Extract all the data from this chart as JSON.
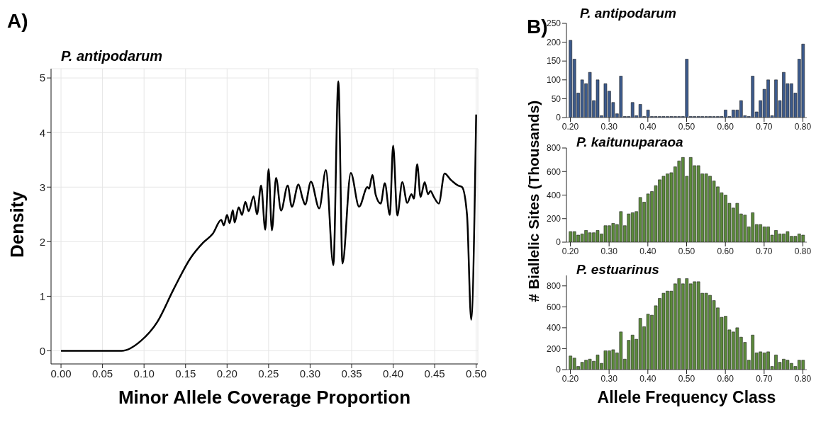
{
  "chart_data": [
    {
      "type": "line",
      "title": "P. antipodarum",
      "annotations": [
        "A)"
      ],
      "xlabel": "Minor Allele Coverage Proportion",
      "ylabel": "Density",
      "color": "#000000",
      "grid": true,
      "xlim": [
        -0.012,
        0.502
      ],
      "ylim": [
        -0.24,
        5.17
      ],
      "xticks": [
        {
          "value": 0,
          "label": "0.00"
        },
        {
          "value": 0.05,
          "label": "0.05"
        },
        {
          "value": 0.1,
          "label": "0.10"
        },
        {
          "value": 0.15,
          "label": "0.15"
        },
        {
          "value": 0.2,
          "label": "0.20"
        },
        {
          "value": 0.25,
          "label": "0.25"
        },
        {
          "value": 0.3,
          "label": "0.30"
        },
        {
          "value": 0.35,
          "label": "0.35"
        },
        {
          "value": 0.4,
          "label": "0.40"
        },
        {
          "value": 0.45,
          "label": "0.45"
        },
        {
          "value": 0.5,
          "label": "0.50"
        }
      ],
      "yticks": [
        0,
        1,
        2,
        3,
        4,
        5
      ],
      "x": [
        0,
        0.073,
        0.096,
        0.116,
        0.136,
        0.156,
        0.171,
        0.183,
        0.193,
        0.196,
        0.2,
        0.203,
        0.207,
        0.209,
        0.214,
        0.218,
        0.222,
        0.226,
        0.232,
        0.236,
        0.241,
        0.246,
        0.25,
        0.254,
        0.259,
        0.265,
        0.273,
        0.278,
        0.286,
        0.291,
        0.294,
        0.301,
        0.311,
        0.319,
        0.328,
        0.334,
        0.339,
        0.349,
        0.359,
        0.369,
        0.371,
        0.375,
        0.379,
        0.385,
        0.39,
        0.396,
        0.4,
        0.405,
        0.411,
        0.417,
        0.422,
        0.425,
        0.429,
        0.433,
        0.438,
        0.442,
        0.445,
        0.449,
        0.455,
        0.462,
        0.469,
        0.478,
        0.483,
        0.489,
        0.494,
        0.5
      ],
      "values": [
        0,
        0,
        0.18,
        0.53,
        1.14,
        1.7,
        1.98,
        2.15,
        2.4,
        2.3,
        2.49,
        2.34,
        2.58,
        2.35,
        2.63,
        2.49,
        2.73,
        2.56,
        2.83,
        2.5,
        3.03,
        2.22,
        3.33,
        2.21,
        3.17,
        2.57,
        3.03,
        2.64,
        3.05,
        2.79,
        2.68,
        3.1,
        2.61,
        3.31,
        1.57,
        4.94,
        1.6,
        3.26,
        2.64,
        3.0,
        2.97,
        3.22,
        2.86,
        2.7,
        3.07,
        2.49,
        3.76,
        2.48,
        3.09,
        2.71,
        2.87,
        2.79,
        3.42,
        2.82,
        3.09,
        2.87,
        2.93,
        2.82,
        2.7,
        3.25,
        3.14,
        3.03,
        3.0,
        2.49,
        0.57,
        4.33
      ]
    },
    {
      "type": "bar",
      "title": "P. antipodarum",
      "annotations": [
        "B)"
      ],
      "color": "#3c5a8c",
      "xlim": [
        0.19,
        0.81
      ],
      "ylim": [
        0,
        250
      ],
      "yticks": [
        0,
        50,
        100,
        150,
        200,
        250
      ],
      "xticks": [
        {
          "value": 0.2,
          "label": "0.20"
        },
        {
          "value": 0.3,
          "label": "0.30"
        },
        {
          "value": 0.4,
          "label": "0.40"
        },
        {
          "value": 0.5,
          "label": "0.50"
        },
        {
          "value": 0.6,
          "label": "0.60"
        },
        {
          "value": 0.7,
          "label": "0.70"
        },
        {
          "value": 0.8,
          "label": "0.80"
        }
      ],
      "x": [
        0.2,
        0.21,
        0.22,
        0.23,
        0.24,
        0.25,
        0.26,
        0.27,
        0.28,
        0.29,
        0.3,
        0.31,
        0.32,
        0.33,
        0.34,
        0.35,
        0.36,
        0.37,
        0.38,
        0.39,
        0.4,
        0.41,
        0.42,
        0.43,
        0.44,
        0.45,
        0.46,
        0.47,
        0.48,
        0.49,
        0.5,
        0.51,
        0.52,
        0.53,
        0.54,
        0.55,
        0.56,
        0.57,
        0.58,
        0.59,
        0.6,
        0.61,
        0.62,
        0.63,
        0.64,
        0.65,
        0.66,
        0.67,
        0.68,
        0.69,
        0.7,
        0.71,
        0.72,
        0.73,
        0.74,
        0.75,
        0.76,
        0.77,
        0.78,
        0.79,
        0.8
      ],
      "values": [
        205,
        155,
        65,
        100,
        90,
        120,
        45,
        100,
        5,
        90,
        70,
        40,
        10,
        110,
        3,
        3,
        40,
        5,
        35,
        3,
        20,
        3,
        3,
        3,
        3,
        3,
        3,
        3,
        3,
        3,
        155,
        3,
        3,
        3,
        3,
        3,
        3,
        3,
        3,
        3,
        20,
        3,
        20,
        20,
        45,
        5,
        3,
        110,
        15,
        45,
        75,
        100,
        5,
        100,
        45,
        120,
        90,
        90,
        65,
        155,
        195
      ]
    },
    {
      "type": "bar",
      "title": "P. kaitunuparaoa",
      "ylabel": "# Biallelic Sites (Thousands)",
      "color": "#5b8a3a",
      "xlim": [
        0.19,
        0.81
      ],
      "ylim": [
        0,
        800
      ],
      "yticks": [
        0,
        200,
        400,
        600,
        800
      ],
      "xticks": [
        {
          "value": 0.2,
          "label": "0.20"
        },
        {
          "value": 0.3,
          "label": "0.30"
        },
        {
          "value": 0.4,
          "label": "0.40"
        },
        {
          "value": 0.5,
          "label": "0.50"
        },
        {
          "value": 0.6,
          "label": "0.60"
        },
        {
          "value": 0.7,
          "label": "0.70"
        },
        {
          "value": 0.8,
          "label": "0.80"
        }
      ],
      "x": [
        0.2,
        0.21,
        0.22,
        0.23,
        0.24,
        0.25,
        0.26,
        0.27,
        0.28,
        0.29,
        0.3,
        0.31,
        0.32,
        0.33,
        0.34,
        0.35,
        0.36,
        0.37,
        0.38,
        0.39,
        0.4,
        0.41,
        0.42,
        0.43,
        0.44,
        0.45,
        0.46,
        0.47,
        0.48,
        0.49,
        0.5,
        0.51,
        0.52,
        0.53,
        0.54,
        0.55,
        0.56,
        0.57,
        0.58,
        0.59,
        0.6,
        0.61,
        0.62,
        0.63,
        0.64,
        0.65,
        0.66,
        0.67,
        0.68,
        0.69,
        0.7,
        0.71,
        0.72,
        0.73,
        0.74,
        0.75,
        0.76,
        0.77,
        0.78,
        0.79,
        0.8
      ],
      "values": [
        90,
        90,
        60,
        70,
        100,
        80,
        80,
        100,
        70,
        140,
        140,
        160,
        150,
        260,
        140,
        240,
        250,
        260,
        380,
        340,
        410,
        430,
        480,
        530,
        560,
        580,
        590,
        640,
        690,
        720,
        560,
        720,
        650,
        650,
        580,
        580,
        560,
        520,
        470,
        420,
        400,
        330,
        290,
        330,
        240,
        230,
        130,
        250,
        150,
        150,
        130,
        130,
        60,
        100,
        70,
        70,
        90,
        50,
        50,
        70,
        60
      ]
    },
    {
      "type": "bar",
      "title": "P. estuarinus",
      "xlabel": "Allele Frequency Class",
      "color": "#5b8a3a",
      "xlim": [
        0.19,
        0.81
      ],
      "ylim": [
        0,
        900
      ],
      "yticks": [
        0,
        200,
        400,
        600,
        800
      ],
      "xticks": [
        {
          "value": 0.2,
          "label": "0.20"
        },
        {
          "value": 0.3,
          "label": "0.30"
        },
        {
          "value": 0.4,
          "label": "0.40"
        },
        {
          "value": 0.5,
          "label": "0.50"
        },
        {
          "value": 0.6,
          "label": "0.60"
        },
        {
          "value": 0.7,
          "label": "0.70"
        },
        {
          "value": 0.8,
          "label": "0.80"
        }
      ],
      "x": [
        0.2,
        0.21,
        0.22,
        0.23,
        0.24,
        0.25,
        0.26,
        0.27,
        0.28,
        0.29,
        0.3,
        0.31,
        0.32,
        0.33,
        0.34,
        0.35,
        0.36,
        0.37,
        0.38,
        0.39,
        0.4,
        0.41,
        0.42,
        0.43,
        0.44,
        0.45,
        0.46,
        0.47,
        0.48,
        0.49,
        0.5,
        0.51,
        0.52,
        0.53,
        0.54,
        0.55,
        0.56,
        0.57,
        0.58,
        0.59,
        0.6,
        0.61,
        0.62,
        0.63,
        0.64,
        0.65,
        0.66,
        0.67,
        0.68,
        0.69,
        0.7,
        0.71,
        0.72,
        0.73,
        0.74,
        0.75,
        0.76,
        0.77,
        0.78,
        0.79,
        0.8
      ],
      "values": [
        130,
        110,
        30,
        70,
        90,
        100,
        80,
        140,
        60,
        180,
        180,
        190,
        160,
        360,
        100,
        280,
        330,
        290,
        490,
        410,
        530,
        520,
        610,
        680,
        730,
        750,
        750,
        820,
        870,
        820,
        870,
        820,
        840,
        840,
        730,
        730,
        710,
        660,
        590,
        500,
        510,
        380,
        360,
        400,
        310,
        260,
        90,
        330,
        160,
        170,
        160,
        170,
        30,
        140,
        70,
        100,
        90,
        60,
        30,
        90,
        90
      ]
    }
  ]
}
